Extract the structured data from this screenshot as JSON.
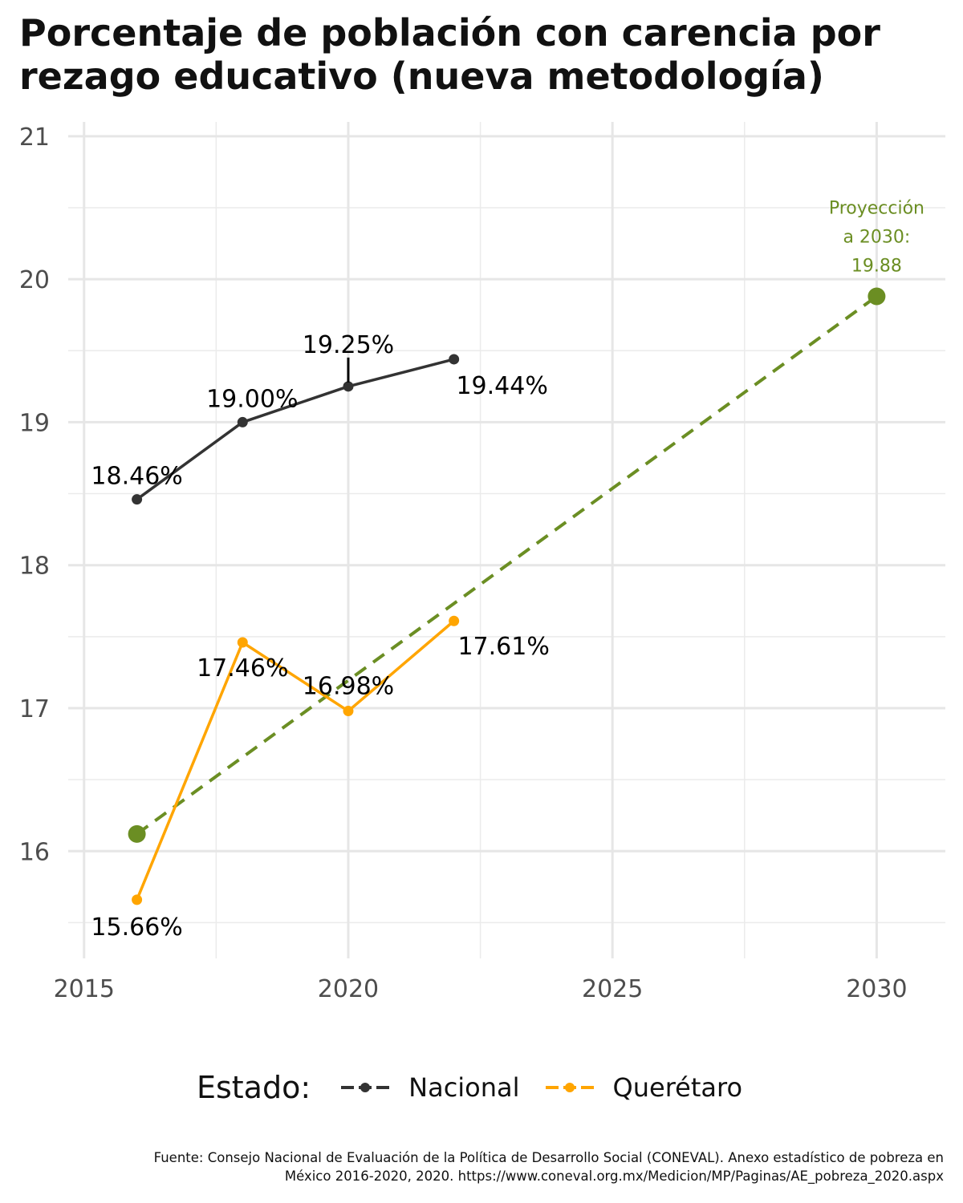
{
  "title": "Porcentaje de población con carencia por rezago educativo (nueva metodología)",
  "legend": {
    "title": "Estado:",
    "items": [
      {
        "label": "Nacional",
        "color": "#333333"
      },
      {
        "label": "Querétaro",
        "color": "#FFA500"
      }
    ]
  },
  "caption": {
    "line1": "Fuente: Consejo Nacional de Evaluación de la Política de Desarrollo Social (CONEVAL). Anexo estadístico de pobreza en",
    "line2": "México 2016-2020, 2020. https://www.coneval.org.mx/Medicion/MP/Paginas/AE_pobreza_2020.aspx"
  },
  "chart_data": {
    "type": "line",
    "title": "Porcentaje de población con carencia por rezago educativo (nueva metodología)",
    "xlabel": "",
    "ylabel": "",
    "xlim": [
      2014.7,
      2031.3
    ],
    "ylim": [
      15.25,
      21.1
    ],
    "x_ticks": [
      2015,
      2020,
      2025,
      2030
    ],
    "y_ticks": [
      16,
      17,
      18,
      19,
      20,
      21
    ],
    "grid": true,
    "legend_position": "bottom",
    "series": [
      {
        "name": "Nacional",
        "color": "#333333",
        "x": [
          2016,
          2018,
          2020,
          2022
        ],
        "y": [
          18.46,
          19.0,
          19.25,
          19.44
        ],
        "labels": [
          "18.46%",
          "19.00%",
          "19.25%",
          "19.44%"
        ]
      },
      {
        "name": "Querétaro",
        "color": "#FFA500",
        "x": [
          2016,
          2018,
          2020,
          2022
        ],
        "y": [
          15.66,
          17.46,
          16.98,
          17.61
        ],
        "labels": [
          "15.66%",
          "17.46%",
          "16.98%",
          "17.61%"
        ]
      }
    ],
    "projection": {
      "color": "#6B8E23",
      "x": [
        2016,
        2030
      ],
      "y": [
        16.12,
        19.88
      ],
      "annotation": [
        "Proyección",
        "a 2030:",
        "19.88"
      ]
    }
  }
}
